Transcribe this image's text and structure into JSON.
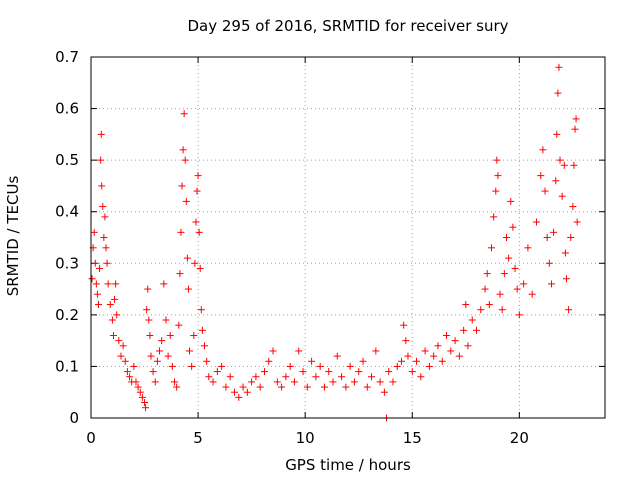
{
  "chart_data": {
    "type": "scatter",
    "title": "Day 295 of 2016, SRMTID for receiver sury",
    "xlabel": "GPS time / hours",
    "ylabel": "SRMTID / TECUs",
    "xlim": [
      0,
      24
    ],
    "ylim": [
      0,
      0.7
    ],
    "x_ticks": [
      0,
      5,
      10,
      15,
      20
    ],
    "x_tick_labels": [
      "0",
      "5",
      "10",
      "15",
      "20"
    ],
    "y_ticks": [
      0,
      0.1,
      0.2,
      0.3,
      0.4,
      0.5,
      0.6,
      0.7
    ],
    "y_tick_labels": [
      "0",
      "0.1",
      "0.2",
      "0.3",
      "0.4",
      "0.5",
      "0.6",
      "0.7"
    ],
    "grid": true,
    "marker": "+",
    "color": "#ff0000",
    "series": [
      {
        "name": "SRMTID",
        "points": [
          [
            0.05,
            0.27
          ],
          [
            0.1,
            0.33
          ],
          [
            0.15,
            0.36
          ],
          [
            0.2,
            0.3
          ],
          [
            0.25,
            0.26
          ],
          [
            0.3,
            0.24
          ],
          [
            0.35,
            0.22
          ],
          [
            0.4,
            0.29
          ],
          [
            0.45,
            0.5
          ],
          [
            0.48,
            0.55
          ],
          [
            0.5,
            0.45
          ],
          [
            0.55,
            0.41
          ],
          [
            0.6,
            0.35
          ],
          [
            0.65,
            0.39
          ],
          [
            0.7,
            0.33
          ],
          [
            0.75,
            0.3
          ],
          [
            0.8,
            0.26
          ],
          [
            0.9,
            0.22
          ],
          [
            1.0,
            0.19
          ],
          [
            1.05,
            0.16
          ],
          [
            1.1,
            0.23
          ],
          [
            1.15,
            0.26
          ],
          [
            1.2,
            0.2
          ],
          [
            1.3,
            0.15
          ],
          [
            1.4,
            0.12
          ],
          [
            1.5,
            0.14
          ],
          [
            1.6,
            0.11
          ],
          [
            1.7,
            0.09
          ],
          [
            1.8,
            0.08
          ],
          [
            1.9,
            0.07
          ],
          [
            2.0,
            0.1
          ],
          [
            2.1,
            0.07
          ],
          [
            2.2,
            0.06
          ],
          [
            2.3,
            0.05
          ],
          [
            2.4,
            0.04
          ],
          [
            2.5,
            0.03
          ],
          [
            2.55,
            0.02
          ],
          [
            2.6,
            0.21
          ],
          [
            2.65,
            0.25
          ],
          [
            2.7,
            0.19
          ],
          [
            2.75,
            0.16
          ],
          [
            2.8,
            0.12
          ],
          [
            2.9,
            0.09
          ],
          [
            3.0,
            0.07
          ],
          [
            3.1,
            0.11
          ],
          [
            3.2,
            0.13
          ],
          [
            3.3,
            0.15
          ],
          [
            3.4,
            0.26
          ],
          [
            3.5,
            0.19
          ],
          [
            3.6,
            0.12
          ],
          [
            3.7,
            0.16
          ],
          [
            3.8,
            0.1
          ],
          [
            3.9,
            0.07
          ],
          [
            4.0,
            0.06
          ],
          [
            4.1,
            0.18
          ],
          [
            4.15,
            0.28
          ],
          [
            4.2,
            0.36
          ],
          [
            4.25,
            0.45
          ],
          [
            4.3,
            0.52
          ],
          [
            4.35,
            0.59
          ],
          [
            4.4,
            0.5
          ],
          [
            4.45,
            0.42
          ],
          [
            4.5,
            0.31
          ],
          [
            4.55,
            0.25
          ],
          [
            4.6,
            0.13
          ],
          [
            4.7,
            0.1
          ],
          [
            4.8,
            0.16
          ],
          [
            4.85,
            0.3
          ],
          [
            4.9,
            0.38
          ],
          [
            4.95,
            0.44
          ],
          [
            5.0,
            0.47
          ],
          [
            5.05,
            0.36
          ],
          [
            5.1,
            0.29
          ],
          [
            5.15,
            0.21
          ],
          [
            5.2,
            0.17
          ],
          [
            5.3,
            0.14
          ],
          [
            5.4,
            0.11
          ],
          [
            5.5,
            0.08
          ],
          [
            5.7,
            0.07
          ],
          [
            5.9,
            0.09
          ],
          [
            6.1,
            0.1
          ],
          [
            6.3,
            0.06
          ],
          [
            6.5,
            0.08
          ],
          [
            6.7,
            0.05
          ],
          [
            6.9,
            0.04
          ],
          [
            7.1,
            0.06
          ],
          [
            7.3,
            0.05
          ],
          [
            7.5,
            0.07
          ],
          [
            7.7,
            0.08
          ],
          [
            7.9,
            0.06
          ],
          [
            8.1,
            0.09
          ],
          [
            8.3,
            0.11
          ],
          [
            8.5,
            0.13
          ],
          [
            8.7,
            0.07
          ],
          [
            8.9,
            0.06
          ],
          [
            9.1,
            0.08
          ],
          [
            9.3,
            0.1
          ],
          [
            9.5,
            0.07
          ],
          [
            9.7,
            0.13
          ],
          [
            9.9,
            0.09
          ],
          [
            10.1,
            0.06
          ],
          [
            10.3,
            0.11
          ],
          [
            10.5,
            0.08
          ],
          [
            10.7,
            0.1
          ],
          [
            10.9,
            0.06
          ],
          [
            11.1,
            0.09
          ],
          [
            11.3,
            0.07
          ],
          [
            11.5,
            0.12
          ],
          [
            11.7,
            0.08
          ],
          [
            11.9,
            0.06
          ],
          [
            12.1,
            0.1
          ],
          [
            12.3,
            0.07
          ],
          [
            12.5,
            0.09
          ],
          [
            12.7,
            0.11
          ],
          [
            12.9,
            0.06
          ],
          [
            13.1,
            0.08
          ],
          [
            13.3,
            0.13
          ],
          [
            13.5,
            0.07
          ],
          [
            13.7,
            0.05
          ],
          [
            13.8,
            0.0
          ],
          [
            13.9,
            0.09
          ],
          [
            14.1,
            0.07
          ],
          [
            14.3,
            0.1
          ],
          [
            14.5,
            0.11
          ],
          [
            14.6,
            0.18
          ],
          [
            14.7,
            0.15
          ],
          [
            14.8,
            0.12
          ],
          [
            15.0,
            0.09
          ],
          [
            15.2,
            0.11
          ],
          [
            15.4,
            0.08
          ],
          [
            15.6,
            0.13
          ],
          [
            15.8,
            0.1
          ],
          [
            16.0,
            0.12
          ],
          [
            16.2,
            0.14
          ],
          [
            16.4,
            0.11
          ],
          [
            16.6,
            0.16
          ],
          [
            16.8,
            0.13
          ],
          [
            17.0,
            0.15
          ],
          [
            17.2,
            0.12
          ],
          [
            17.4,
            0.17
          ],
          [
            17.5,
            0.22
          ],
          [
            17.6,
            0.14
          ],
          [
            17.8,
            0.19
          ],
          [
            18.0,
            0.17
          ],
          [
            18.2,
            0.21
          ],
          [
            18.4,
            0.25
          ],
          [
            18.5,
            0.28
          ],
          [
            18.6,
            0.22
          ],
          [
            18.7,
            0.33
          ],
          [
            18.8,
            0.39
          ],
          [
            18.9,
            0.44
          ],
          [
            18.95,
            0.5
          ],
          [
            19.0,
            0.47
          ],
          [
            19.1,
            0.24
          ],
          [
            19.2,
            0.21
          ],
          [
            19.3,
            0.28
          ],
          [
            19.4,
            0.35
          ],
          [
            19.5,
            0.31
          ],
          [
            19.6,
            0.42
          ],
          [
            19.7,
            0.37
          ],
          [
            19.8,
            0.29
          ],
          [
            19.9,
            0.25
          ],
          [
            20.0,
            0.2
          ],
          [
            20.2,
            0.26
          ],
          [
            20.4,
            0.33
          ],
          [
            20.6,
            0.24
          ],
          [
            20.8,
            0.38
          ],
          [
            21.0,
            0.47
          ],
          [
            21.1,
            0.52
          ],
          [
            21.2,
            0.44
          ],
          [
            21.3,
            0.35
          ],
          [
            21.4,
            0.3
          ],
          [
            21.5,
            0.26
          ],
          [
            21.6,
            0.36
          ],
          [
            21.7,
            0.46
          ],
          [
            21.75,
            0.55
          ],
          [
            21.8,
            0.63
          ],
          [
            21.85,
            0.68
          ],
          [
            21.9,
            0.5
          ],
          [
            22.0,
            0.43
          ],
          [
            22.1,
            0.49
          ],
          [
            22.15,
            0.32
          ],
          [
            22.2,
            0.27
          ],
          [
            22.3,
            0.21
          ],
          [
            22.4,
            0.35
          ],
          [
            22.5,
            0.41
          ],
          [
            22.55,
            0.49
          ],
          [
            22.6,
            0.56
          ],
          [
            22.65,
            0.58
          ],
          [
            22.7,
            0.38
          ]
        ]
      }
    ]
  }
}
